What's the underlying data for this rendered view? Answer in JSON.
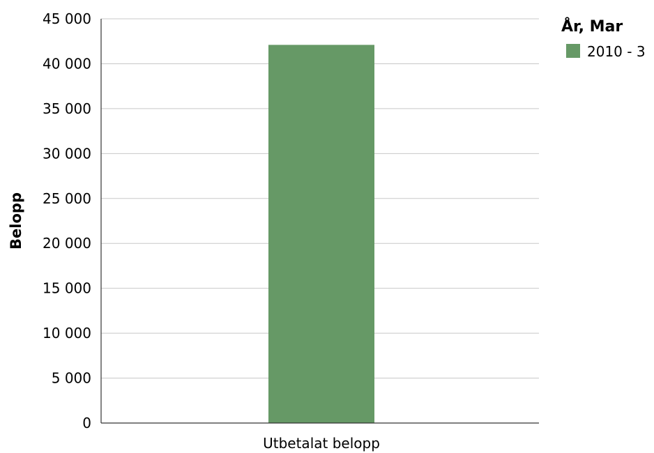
{
  "chart_data": {
    "type": "bar",
    "categories": [
      "Utbetalat belopp"
    ],
    "series": [
      {
        "name": "2010 - 3",
        "values": [
          42100
        ],
        "color": "#669966"
      }
    ],
    "ylabel": "Belopp",
    "xlabel": "",
    "ylim": [
      0,
      45000
    ],
    "yticks": [
      0,
      5000,
      10000,
      15000,
      20000,
      25000,
      30000,
      35000,
      40000,
      45000
    ],
    "ytick_labels": [
      "0",
      "5 000",
      "10 000",
      "15 000",
      "20 000",
      "25 000",
      "30 000",
      "35 000",
      "40 000",
      "45 000"
    ],
    "grid": true,
    "legend": {
      "title": "År, Mar",
      "placement": "top-right"
    }
  }
}
